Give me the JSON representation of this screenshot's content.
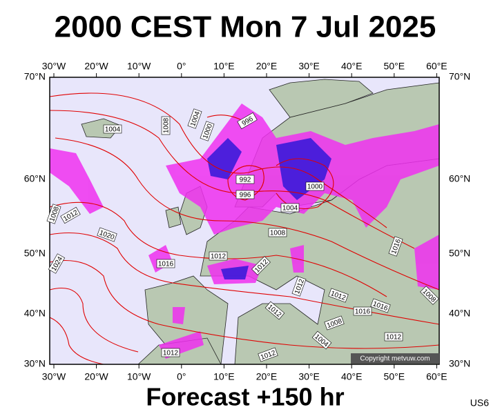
{
  "header": {
    "title": "2000 CEST Mon 7 Jul 2025"
  },
  "map": {
    "top_labels": [
      "30°W",
      "20°W",
      "10°W",
      "0°",
      "10°E",
      "20°E",
      "30°E",
      "40°E",
      "50°E",
      "60°E"
    ],
    "bottom_labels": [
      "30°W",
      "20°W",
      "10°W",
      "0°",
      "10°E",
      "20°E",
      "30°E",
      "40°E",
      "50°E",
      "60°E"
    ],
    "left_labels": [
      "70°N",
      "60°N",
      "50°N",
      "40°N",
      "30°N"
    ],
    "right_labels": [
      "70°N",
      "60°N",
      "50°N",
      "40°N",
      "30°N"
    ],
    "isobar_labels": [
      "1004",
      "1008",
      "1004",
      "1000",
      "996",
      "992",
      "996",
      "1000",
      "1004",
      "1008",
      "1012",
      "1008",
      "1020",
      "1024",
      "1016",
      "1012",
      "1012",
      "1012",
      "1012",
      "1012",
      "1016",
      "1016",
      "1008",
      "1004",
      "1012",
      "1012",
      "1012",
      "1016",
      "1008"
    ],
    "copyright": "Copyright metvuw.com"
  },
  "footer": {
    "forecast": "Forecast +150 hr",
    "code": "US6"
  }
}
